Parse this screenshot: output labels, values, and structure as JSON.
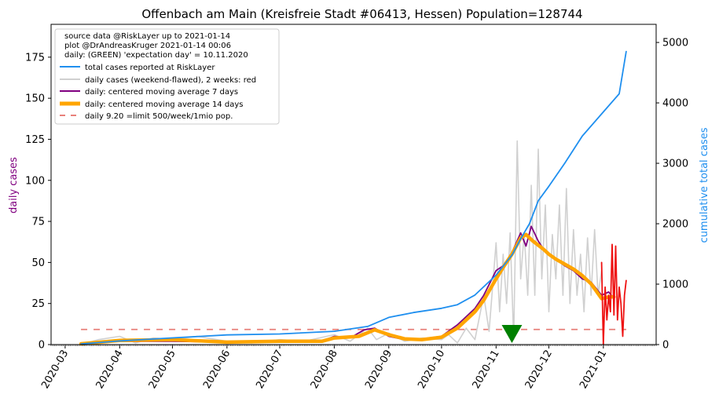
{
  "chart_data": {
    "type": "line",
    "title": "Offenbach am Main (Kreisfreie Stadt #06413, Hessen) Population=128744",
    "ylabel_left": "daily cases",
    "ylabel_right": "cumulative total cases",
    "colors": {
      "total": "#1f8fef",
      "raw": "#d0d0d0",
      "raw_recent": "#ee1111",
      "ma7": "#800080",
      "ma14": "#ffa500",
      "limit": "#e8807a",
      "expectation_day": "#008000",
      "ylabel_left": "#800080",
      "ylabel_right": "#1f8fef"
    },
    "left_axis": {
      "ylim": [
        0,
        195
      ],
      "ticks": [
        0,
        25,
        50,
        75,
        100,
        125,
        150,
        175
      ]
    },
    "right_axis": {
      "ylim": [
        0,
        5300
      ],
      "ticks": [
        0,
        1000,
        2000,
        3000,
        4000,
        5000
      ]
    },
    "x_axis": {
      "range": [
        "2020-02-22",
        "2021-01-31"
      ],
      "tick_labels": [
        "2020-03",
        "2020-04",
        "2020-05",
        "2020-06",
        "2020-07",
        "2020-08",
        "2020-09",
        "2020-10",
        "2020-11",
        "2020-12",
        "2021-01"
      ],
      "tick_dates": [
        "2020-03-01",
        "2020-04-01",
        "2020-05-01",
        "2020-06-01",
        "2020-07-01",
        "2020-08-01",
        "2020-09-01",
        "2020-10-01",
        "2020-11-01",
        "2020-12-01",
        "2021-01-01"
      ]
    },
    "legend": {
      "placement": "top-left",
      "info_lines": [
        "source data @RiskLayer up to 2021-01-14",
        "plot @DrAndreasKruger 2021-01-14 00:06",
        "daily: (GREEN) 'expectation day' = 10.11.2020"
      ],
      "entries": [
        {
          "label": "total cases reported at RiskLayer",
          "key": "total"
        },
        {
          "label": "daily cases (weekend-flawed), 2 weeks: red",
          "key": "raw"
        },
        {
          "label": "daily: centered moving average 7 days",
          "key": "ma7"
        },
        {
          "label": "daily: centered moving average 14 days",
          "key": "ma14"
        },
        {
          "label": "daily 9.20 =limit 500/week/1mio pop.",
          "key": "limit"
        }
      ]
    },
    "limit_value": 9.2,
    "limit_range": [
      "2020-03-10",
      "2021-01-14"
    ],
    "expectation_day": "2020-11-10",
    "series": [
      {
        "key": "total",
        "axis": "right",
        "x": [
          "2020-03-10",
          "2020-04-01",
          "2020-05-01",
          "2020-06-01",
          "2020-07-01",
          "2020-08-01",
          "2020-08-20",
          "2020-09-01",
          "2020-09-15",
          "2020-10-01",
          "2020-10-10",
          "2020-10-20",
          "2020-11-01",
          "2020-11-10",
          "2020-11-15",
          "2020-11-20",
          "2020-11-25",
          "2020-12-01",
          "2020-12-10",
          "2020-12-20",
          "2021-01-01",
          "2021-01-10",
          "2021-01-14"
        ],
        "y": [
          10,
          60,
          110,
          160,
          175,
          220,
          300,
          450,
          530,
          600,
          660,
          820,
          1150,
          1480,
          1750,
          2000,
          2380,
          2620,
          3000,
          3450,
          3850,
          4150,
          4850
        ]
      },
      {
        "key": "raw",
        "axis": "left",
        "x": [
          "2020-03-10",
          "2020-03-20",
          "2020-04-01",
          "2020-04-10",
          "2020-04-20",
          "2020-05-01",
          "2020-05-15",
          "2020-06-01",
          "2020-06-15",
          "2020-07-01",
          "2020-07-15",
          "2020-08-01",
          "2020-08-10",
          "2020-08-20",
          "2020-08-25",
          "2020-09-01",
          "2020-09-10",
          "2020-09-20",
          "2020-10-01",
          "2020-10-05",
          "2020-10-10",
          "2020-10-15",
          "2020-10-20",
          "2020-10-25",
          "2020-10-28",
          "2020-11-01",
          "2020-11-03",
          "2020-11-05",
          "2020-11-07",
          "2020-11-09",
          "2020-11-11",
          "2020-11-13",
          "2020-11-15",
          "2020-11-17",
          "2020-11-19",
          "2020-11-21",
          "2020-11-23",
          "2020-11-25",
          "2020-11-27",
          "2020-11-29",
          "2020-12-01",
          "2020-12-03",
          "2020-12-05",
          "2020-12-07",
          "2020-12-09",
          "2020-12-11",
          "2020-12-13",
          "2020-12-15",
          "2020-12-17",
          "2020-12-19",
          "2020-12-21",
          "2020-12-23",
          "2020-12-25",
          "2020-12-27",
          "2020-12-29",
          "2020-12-31"
        ],
        "y": [
          0,
          3,
          5,
          1,
          4,
          3,
          5,
          2,
          1,
          3,
          2,
          6,
          2,
          10,
          3,
          7,
          2,
          4,
          3,
          6,
          1,
          10,
          3,
          30,
          8,
          62,
          20,
          55,
          25,
          68,
          3,
          124,
          40,
          68,
          30,
          97,
          30,
          119,
          40,
          85,
          20,
          67,
          40,
          85,
          30,
          95,
          25,
          70,
          30,
          55,
          20,
          65,
          30,
          70,
          30,
          45
        ]
      },
      {
        "key": "raw_recent",
        "axis": "left",
        "x": [
          "2020-12-31",
          "2021-01-01",
          "2021-01-02",
          "2021-01-03",
          "2021-01-04",
          "2021-01-05",
          "2021-01-06",
          "2021-01-07",
          "2021-01-08",
          "2021-01-09",
          "2021-01-10",
          "2021-01-11",
          "2021-01-12",
          "2021-01-13",
          "2021-01-14"
        ],
        "y": [
          50,
          0,
          35,
          15,
          30,
          20,
          61,
          18,
          60,
          15,
          35,
          25,
          5,
          30,
          39
        ]
      },
      {
        "key": "ma7",
        "axis": "left",
        "x": [
          "2020-03-10",
          "2020-04-01",
          "2020-05-01",
          "2020-06-01",
          "2020-07-01",
          "2020-07-25",
          "2020-08-01",
          "2020-08-10",
          "2020-08-18",
          "2020-08-24",
          "2020-09-01",
          "2020-09-10",
          "2020-09-20",
          "2020-10-01",
          "2020-10-10",
          "2020-10-20",
          "2020-10-25",
          "2020-11-01",
          "2020-11-05",
          "2020-11-10",
          "2020-11-15",
          "2020-11-18",
          "2020-11-21",
          "2020-11-25",
          "2020-11-28",
          "2020-12-01",
          "2020-12-05",
          "2020-12-10",
          "2020-12-15",
          "2020-12-20",
          "2020-12-25",
          "2020-12-31",
          "2021-01-04",
          "2021-01-07"
        ],
        "y": [
          0.5,
          2,
          2,
          1.5,
          2,
          2,
          5,
          4,
          9,
          10,
          5,
          3,
          3.5,
          5,
          12,
          22,
          30,
          45,
          48,
          56,
          68,
          60,
          72,
          63,
          58,
          55,
          52,
          48,
          45,
          40,
          38,
          30,
          32,
          28
        ]
      },
      {
        "key": "ma14",
        "axis": "left",
        "x": [
          "2020-03-10",
          "2020-04-01",
          "2020-05-01",
          "2020-06-01",
          "2020-07-01",
          "2020-07-25",
          "2020-08-01",
          "2020-08-15",
          "2020-08-24",
          "2020-09-01",
          "2020-09-10",
          "2020-09-20",
          "2020-10-01",
          "2020-10-10",
          "2020-10-20",
          "2020-10-25",
          "2020-11-01",
          "2020-11-05",
          "2020-11-10",
          "2020-11-15",
          "2020-11-18",
          "2020-11-22",
          "2020-11-28",
          "2020-12-01",
          "2020-12-05",
          "2020-12-10",
          "2020-12-15",
          "2020-12-20",
          "2020-12-25",
          "2020-12-31",
          "2021-01-04",
          "2021-01-07"
        ],
        "y": [
          0.5,
          2.5,
          3,
          1.5,
          2,
          2,
          4,
          5,
          9,
          6,
          3.5,
          3,
          4.5,
          10,
          20,
          27,
          40,
          47,
          55,
          65,
          67,
          63,
          58,
          55,
          52,
          49,
          46,
          42,
          37,
          28,
          29,
          29
        ]
      }
    ]
  }
}
